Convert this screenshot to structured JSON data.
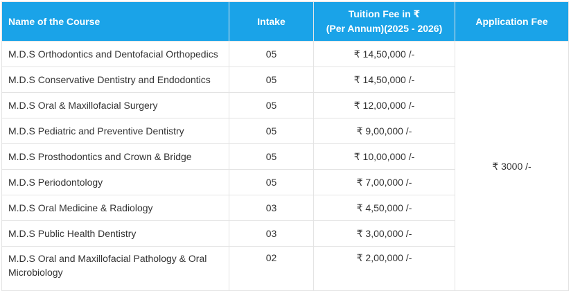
{
  "table": {
    "headers": {
      "course": "Name of the Course",
      "intake": "Intake",
      "fee_line1": "Tuition Fee in ₹",
      "fee_line2": "(Per Annum)(2025 - 2026)",
      "application": "Application Fee"
    },
    "application_fee": "₹ 3000 /-",
    "rows": [
      {
        "course": "M.D.S Orthodontics and Dentofacial Orthopedics",
        "intake": "05",
        "fee": "₹ 14,50,000 /-"
      },
      {
        "course": "M.D.S Conservative Dentistry and Endodontics",
        "intake": "05",
        "fee": "₹ 14,50,000 /-"
      },
      {
        "course": "M.D.S Oral & Maxillofacial Surgery",
        "intake": "05",
        "fee": "₹ 12,00,000 /-"
      },
      {
        "course": "M.D.S Pediatric and Preventive Dentistry",
        "intake": "05",
        "fee": "₹ 9,00,000 /-"
      },
      {
        "course": "M.D.S Prosthodontics and Crown & Bridge",
        "intake": "05",
        "fee": "₹ 10,00,000 /-"
      },
      {
        "course": "M.D.S Periodontology",
        "intake": "05",
        "fee": "₹ 7,00,000 /-"
      },
      {
        "course": "M.D.S Oral Medicine & Radiology",
        "intake": "03",
        "fee": "₹ 4,50,000 /-"
      },
      {
        "course": "M.D.S Public Health Dentistry",
        "intake": "03",
        "fee": "₹ 3,00,000 /-"
      },
      {
        "course": "M.D.S Oral and Maxillofacial Pathology & Oral Microbiology",
        "intake": "02",
        "fee": "₹ 2,00,000 /-"
      }
    ]
  }
}
